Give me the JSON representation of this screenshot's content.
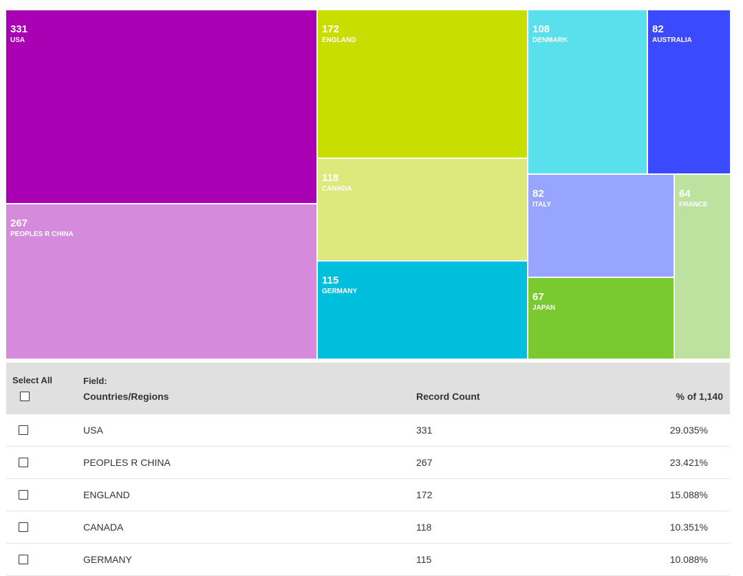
{
  "chart_data": {
    "type": "treemap",
    "field": "Countries/Regions",
    "total": 1140,
    "items": [
      {
        "label": "USA",
        "value": 331,
        "color": "#aa00b4"
      },
      {
        "label": "PEOPLES R CHINA",
        "value": 267,
        "color": "#d68adc"
      },
      {
        "label": "ENGLAND",
        "value": 172,
        "color": "#c8dd00"
      },
      {
        "label": "CANADA",
        "value": 118,
        "color": "#dde97c"
      },
      {
        "label": "GERMANY",
        "value": 115,
        "color": "#00bfdc"
      },
      {
        "label": "DENMARK",
        "value": 108,
        "color": "#5ae0ec"
      },
      {
        "label": "AUSTRALIA",
        "value": 82,
        "color": "#3b49ff"
      },
      {
        "label": "ITALY",
        "value": 82,
        "color": "#98a5ff"
      },
      {
        "label": "JAPAN",
        "value": 67,
        "color": "#7ac92e"
      },
      {
        "label": "FRANCE",
        "value": 64,
        "color": "#bde2a0"
      }
    ]
  },
  "table": {
    "select_all_label": "Select All",
    "field_label": "Field:",
    "field_value": "Countries/Regions",
    "count_header": "Record Count",
    "pct_header": "% of 1,140",
    "rows": [
      {
        "name": "USA",
        "count": "331",
        "pct": "29.035%"
      },
      {
        "name": "PEOPLES R CHINA",
        "count": "267",
        "pct": "23.421%"
      },
      {
        "name": "ENGLAND",
        "count": "172",
        "pct": "15.088%"
      },
      {
        "name": "CANADA",
        "count": "118",
        "pct": "10.351%"
      },
      {
        "name": "GERMANY",
        "count": "115",
        "pct": "10.088%"
      }
    ]
  }
}
